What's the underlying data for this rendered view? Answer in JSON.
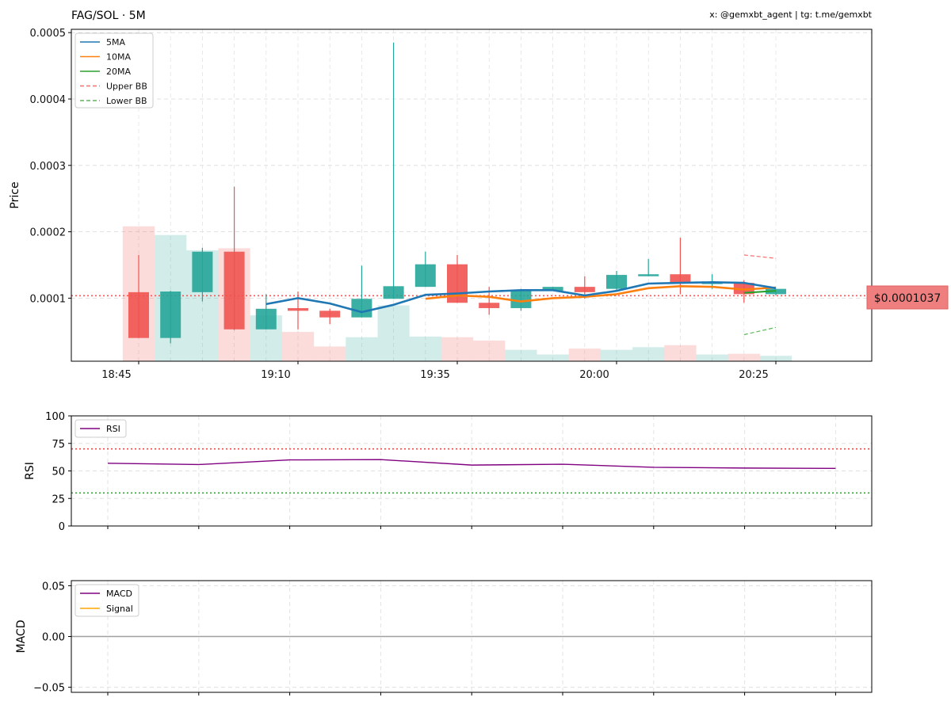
{
  "header": {
    "title": "FAG/SOL · 5M",
    "credit": "x: @gemxbt_agent | tg: t.me/gemxbt"
  },
  "price_label": "$0.0001037",
  "colors": {
    "up": "#26a69a",
    "down": "#ef5350",
    "ma5": "#1f77b4",
    "ma10": "#ff7f0e",
    "ma20": "#2ca02c",
    "upper_bb": "#ff6b6b",
    "lower_bb": "#5cb85c",
    "rsi": "#800080",
    "macd": "#800080",
    "signal": "#ffa500"
  },
  "chart_data": [
    {
      "type": "candlestick",
      "ylabel": "Price",
      "ylim": [
        5e-06,
        0.000505
      ],
      "yticks": [
        0.0001,
        0.0002,
        0.0003,
        0.0004,
        0.0005
      ],
      "ytick_labels": [
        "0.0001",
        "0.0002",
        "0.0003",
        "0.0004",
        "0.0005"
      ],
      "xtick_times": [
        "18:45",
        "19:10",
        "19:35",
        "20:00",
        "20:25"
      ],
      "grid": true,
      "legend_position": "top-left",
      "legend": [
        "5MA",
        "10MA",
        "20MA",
        "Upper BB",
        "Lower BB"
      ],
      "times": [
        "18:45",
        "18:50",
        "18:55",
        "19:00",
        "19:05",
        "19:10",
        "19:15",
        "19:20",
        "19:25",
        "19:30",
        "19:35",
        "19:40",
        "19:45",
        "19:50",
        "19:55",
        "20:00",
        "20:05",
        "20:10",
        "20:15",
        "20:20",
        "20:25"
      ],
      "candles": [
        {
          "o": 0.000109,
          "h": 0.000165,
          "l": 4e-05,
          "c": 4e-05
        },
        {
          "o": 4e-05,
          "h": 0.000111,
          "l": 3.2e-05,
          "c": 0.00011
        },
        {
          "o": 0.000109,
          "h": 0.000176,
          "l": 9.5e-05,
          "c": 0.00017
        },
        {
          "o": 0.00017,
          "h": 0.000268,
          "l": 5.2e-05,
          "c": 5.3e-05
        },
        {
          "o": 5.3e-05,
          "h": 0.000106,
          "l": 5.3e-05,
          "c": 8.4e-05
        },
        {
          "o": 8.5e-05,
          "h": 0.00011,
          "l": 5.3e-05,
          "c": 8.1e-05
        },
        {
          "o": 8.1e-05,
          "h": 8.4e-05,
          "l": 6.1e-05,
          "c": 7.1e-05
        },
        {
          "o": 7.1e-05,
          "h": 0.000149,
          "l": 7.1e-05,
          "c": 9.9e-05
        },
        {
          "o": 9.9e-05,
          "h": 0.000485,
          "l": 9.9e-05,
          "c": 0.000118
        },
        {
          "o": 0.000117,
          "h": 0.00017,
          "l": 0.000117,
          "c": 0.000151
        },
        {
          "o": 0.000151,
          "h": 0.000165,
          "l": 9.3e-05,
          "c": 9.3e-05
        },
        {
          "o": 9.3e-05,
          "h": 0.000117,
          "l": 7.5e-05,
          "c": 8.5e-05
        },
        {
          "o": 8.5e-05,
          "h": 0.000114,
          "l": 8.1e-05,
          "c": 0.000112
        },
        {
          "o": 0.000111,
          "h": 0.000117,
          "l": 0.000111,
          "c": 0.000117
        },
        {
          "o": 0.000117,
          "h": 0.000133,
          "l": 9.9e-05,
          "c": 0.000109
        },
        {
          "o": 0.000114,
          "h": 0.000141,
          "l": 0.000111,
          "c": 0.000135
        },
        {
          "o": 0.000133,
          "h": 0.000159,
          "l": 0.000133,
          "c": 0.000136
        },
        {
          "o": 0.000136,
          "h": 0.000191,
          "l": 0.000106,
          "c": 0.000123
        },
        {
          "o": 0.000123,
          "h": 0.000136,
          "l": 0.000114,
          "c": 0.000123
        },
        {
          "o": 0.000123,
          "h": 0.000127,
          "l": 9.3e-05,
          "c": 0.000106
        },
        {
          "o": 0.000106,
          "h": 0.000114,
          "l": 0.000104,
          "c": 0.000114
        }
      ],
      "volume": [
        0.000208,
        0.000195,
        0.000172,
        0.000175,
        7.4e-05,
        4.9e-05,
        2.7e-05,
        4.1e-05,
        8.9e-05,
        4.2e-05,
        4.1e-05,
        3.6e-05,
        2.2e-05,
        1.5e-05,
        2.4e-05,
        2.2e-05,
        2.6e-05,
        2.9e-05,
        1.5e-05,
        1.6e-05,
        1.3e-05
      ],
      "ma5": [
        null,
        null,
        null,
        null,
        9.1e-05,
        0.0001,
        9.2e-05,
        7.9e-05,
        9e-05,
        0.000105,
        0.000107,
        0.00011,
        0.000112,
        0.000112,
        0.000104,
        0.000111,
        0.000122,
        0.000123,
        0.000124,
        0.000123,
        0.000115
      ],
      "ma10": [
        null,
        null,
        null,
        null,
        null,
        null,
        null,
        null,
        null,
        9.9e-05,
        0.000104,
        0.000102,
        9.5e-05,
        0.0001,
        0.000102,
        0.000106,
        0.000115,
        0.000118,
        0.000117,
        0.000113,
        0.000116
      ],
      "ma20": [
        null,
        null,
        null,
        null,
        null,
        null,
        null,
        null,
        null,
        null,
        null,
        null,
        null,
        null,
        null,
        null,
        null,
        null,
        null,
        0.000108,
        0.000111
      ],
      "upper_bb": [
        null,
        null,
        null,
        null,
        null,
        null,
        null,
        null,
        null,
        null,
        null,
        null,
        null,
        null,
        null,
        null,
        null,
        null,
        null,
        0.000165,
        0.00016
      ],
      "lower_bb": [
        null,
        null,
        null,
        null,
        null,
        null,
        null,
        null,
        null,
        null,
        null,
        null,
        null,
        null,
        null,
        null,
        null,
        null,
        null,
        4.5e-05,
        5.6e-05
      ],
      "current_price": 0.0001037
    },
    {
      "type": "line",
      "ylabel": "RSI",
      "ylim": [
        0,
        100
      ],
      "yticks": [
        0,
        25,
        50,
        75,
        100
      ],
      "legend": [
        "RSI"
      ],
      "overbought": 70,
      "oversold": 30,
      "series": [
        {
          "name": "RSI",
          "values": [
            57,
            55.8,
            60,
            60.3,
            55.3,
            56.1,
            53.3,
            52.6,
            52.3
          ]
        }
      ]
    },
    {
      "type": "line",
      "ylabel": "MACD",
      "ylim": [
        -0.055,
        0.055
      ],
      "yticks": [
        -0.05,
        0.0,
        0.05
      ],
      "ytick_labels": [
        "−0.05",
        "0.00",
        "0.05"
      ],
      "legend": [
        "MACD",
        "Signal"
      ],
      "zero_line": 0,
      "series": [
        {
          "name": "MACD",
          "values": []
        },
        {
          "name": "Signal",
          "values": []
        }
      ]
    }
  ]
}
